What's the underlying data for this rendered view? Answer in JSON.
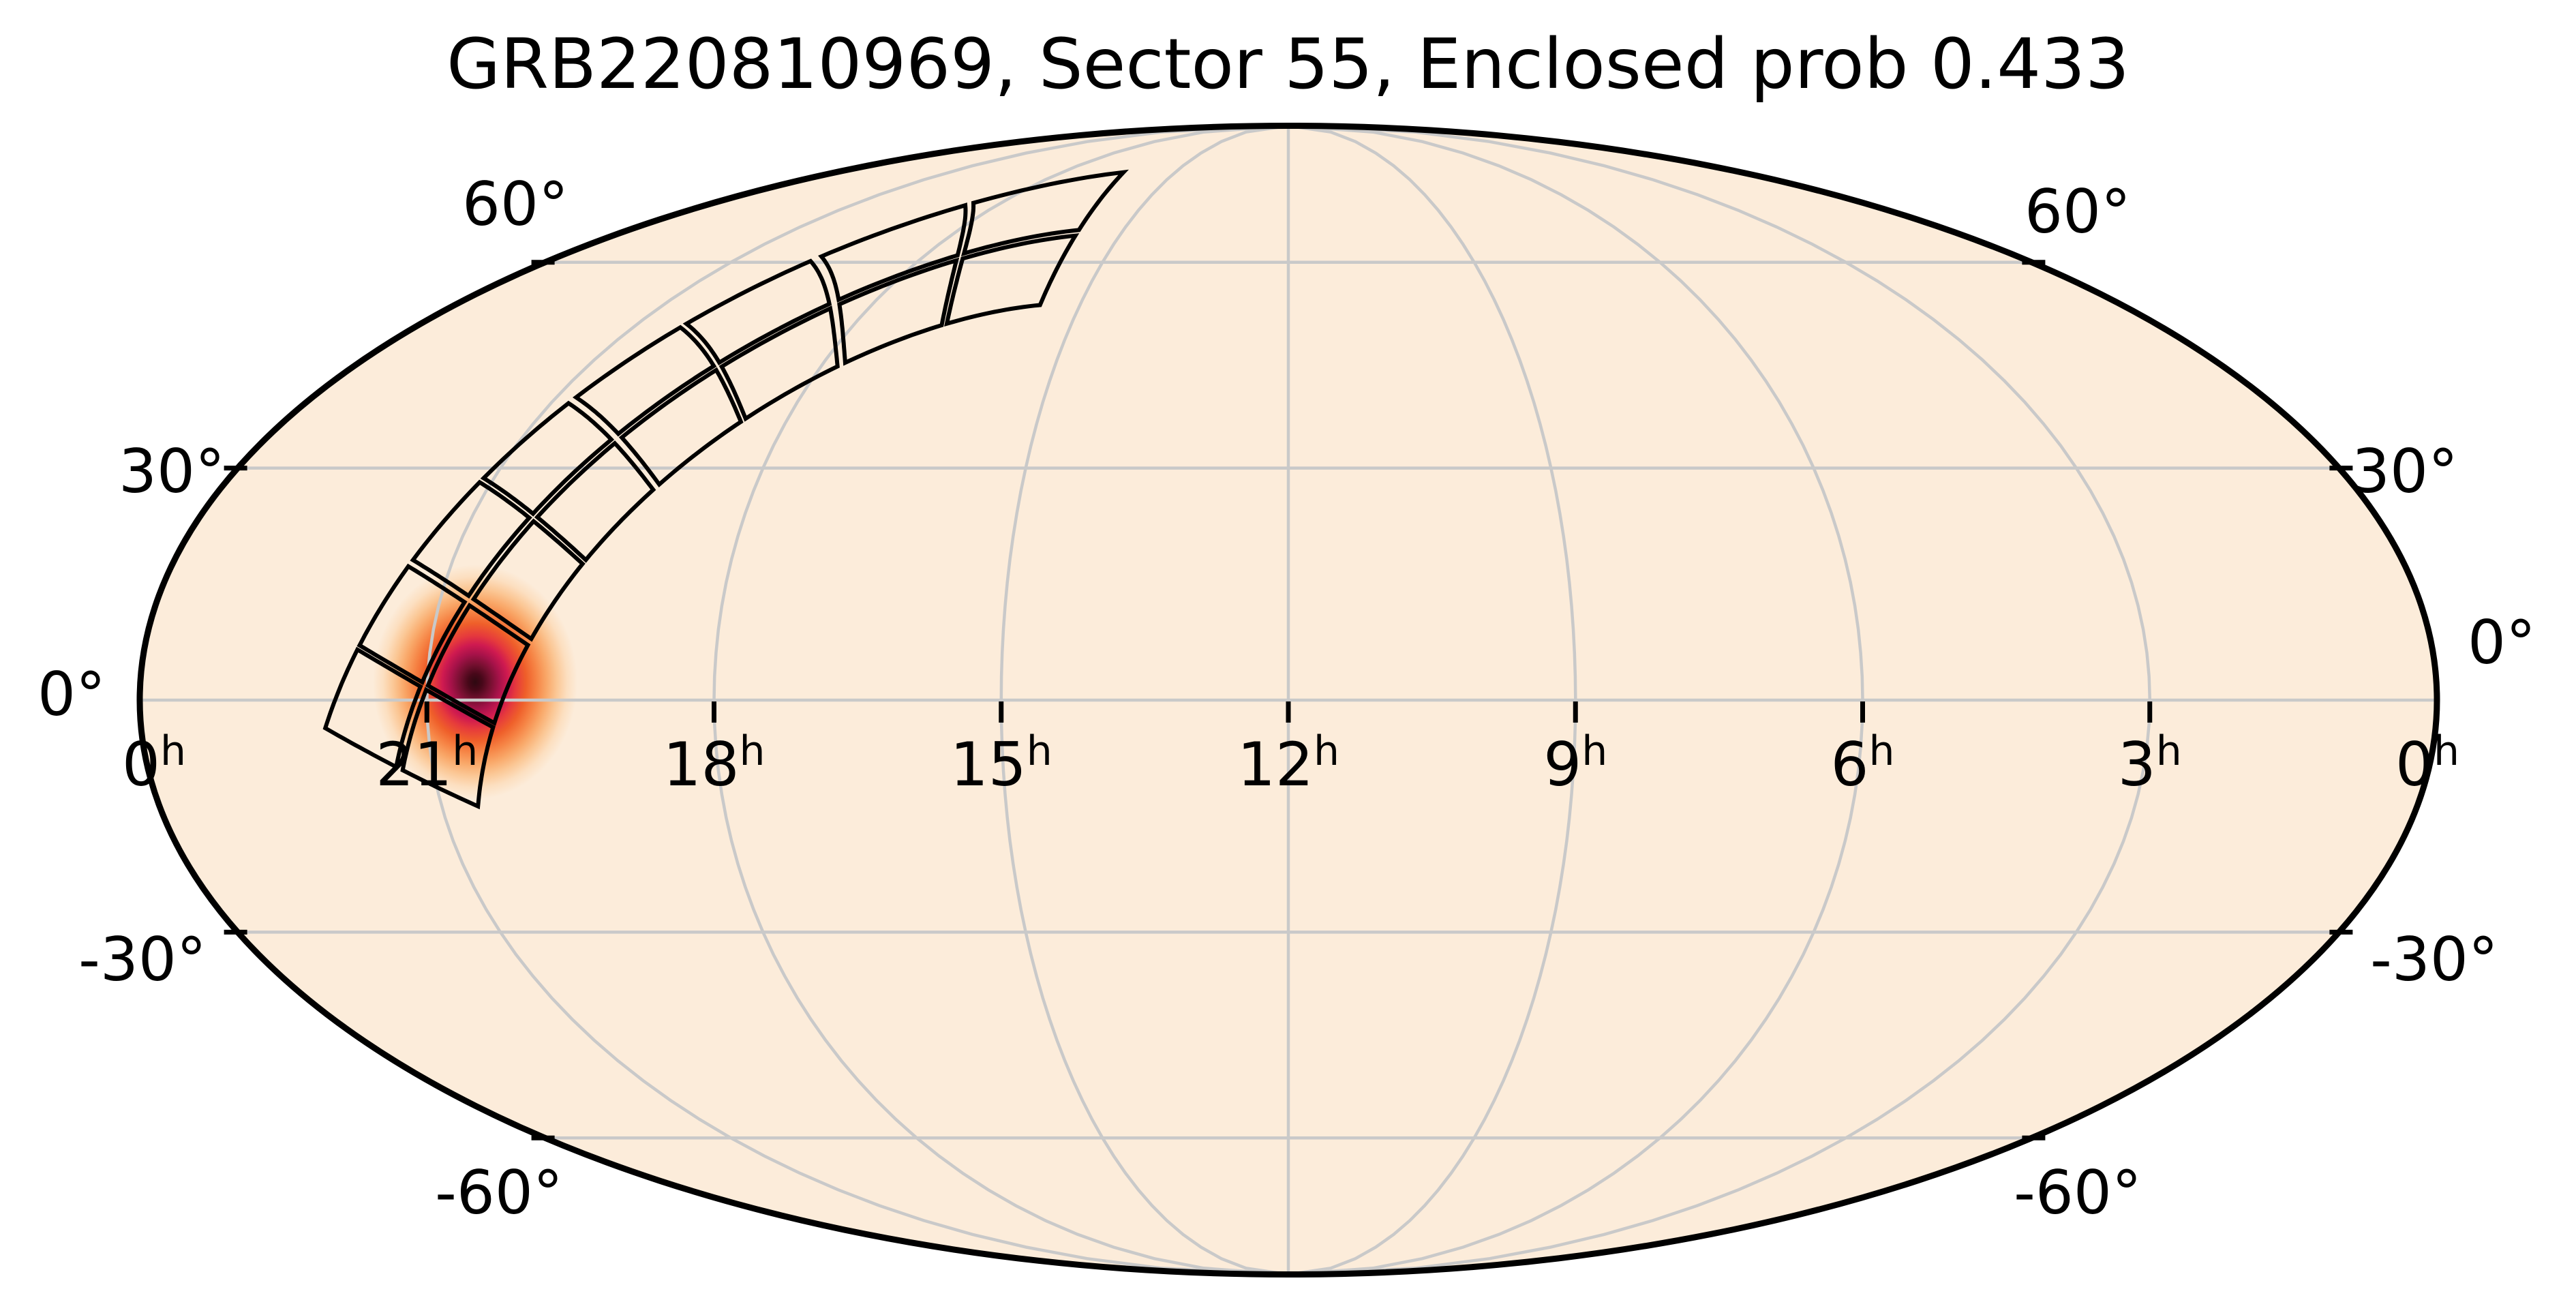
{
  "title": "GRB220810969, Sector 55, Enclosed prob 0.433",
  "chart_data": {
    "type": "skymap",
    "projection": "mollweide",
    "title": "GRB220810969, Sector 55, Enclosed prob 0.433",
    "event": "GRB220810969",
    "sector": 55,
    "enclosed_prob": 0.433,
    "grid": {
      "show_grid": true,
      "dec_lines_deg": [
        60,
        30,
        0,
        -30,
        -60
      ],
      "ra_lines_hours": [
        21,
        18,
        15,
        12,
        9,
        6,
        3
      ]
    },
    "dec_ticks": [
      {
        "deg": 60,
        "label": "60°"
      },
      {
        "deg": 30,
        "label": "30°"
      },
      {
        "deg": 0,
        "label": "0°"
      },
      {
        "deg": -30,
        "label": "-30°"
      },
      {
        "deg": -60,
        "label": "-60°"
      }
    ],
    "ra_ticks": [
      {
        "hours": 21,
        "label": "21",
        "sup": "h"
      },
      {
        "hours": 18,
        "label": "18",
        "sup": "h"
      },
      {
        "hours": 15,
        "label": "15",
        "sup": "h"
      },
      {
        "hours": 12,
        "label": "12",
        "sup": "h"
      },
      {
        "hours": 9,
        "label": "9",
        "sup": "h"
      },
      {
        "hours": 6,
        "label": "6",
        "sup": "h"
      },
      {
        "hours": 3,
        "label": "3",
        "sup": "h"
      }
    ],
    "edge_ra_ticks": [
      {
        "side": "left",
        "hours": 0,
        "label": "0",
        "sup": "h"
      },
      {
        "side": "right",
        "hours": 0,
        "label": "0",
        "sup": "h"
      }
    ],
    "hotspot": {
      "ra_hours": 20.5,
      "dec_deg": 2.3
    },
    "heatmap_stops": [
      [
        0.0,
        "#2e0911"
      ],
      [
        0.07,
        "#470819"
      ],
      [
        0.15,
        "#751030"
      ],
      [
        0.24,
        "#a8124a"
      ],
      [
        0.32,
        "#cf1a50"
      ],
      [
        0.4,
        "#e63a3c"
      ],
      [
        0.5,
        "#ef5f2a"
      ],
      [
        0.6,
        "#f68445"
      ],
      [
        0.7,
        "#f9a869"
      ],
      [
        0.8,
        "#fbc795"
      ],
      [
        0.9,
        "#fcdfc0"
      ],
      [
        1.0,
        "#fcecda"
      ]
    ],
    "footprint": {
      "shape": "camera-strip",
      "n_cameras": 4,
      "camera_size_deg": 24,
      "half_width_deg": 12,
      "start_lat_deg": 6,
      "strip_longitude_deg": 320,
      "obliquity_deg": 23.439,
      "tilt_deg": 7,
      "outer_inset_deg": 0.1,
      "column_inset_deg": 0.5,
      "ccd_inset_deg": 0.3,
      "camera_inset_deg": 0.45
    },
    "colors": {
      "background": "#ffffff",
      "sphere_fill": "#fcecda",
      "grid_line": "#c9c9c9",
      "sphere_outline": "#000000",
      "footprint_line": "#000000",
      "tick_color": "#000000",
      "text": "#000000"
    }
  }
}
